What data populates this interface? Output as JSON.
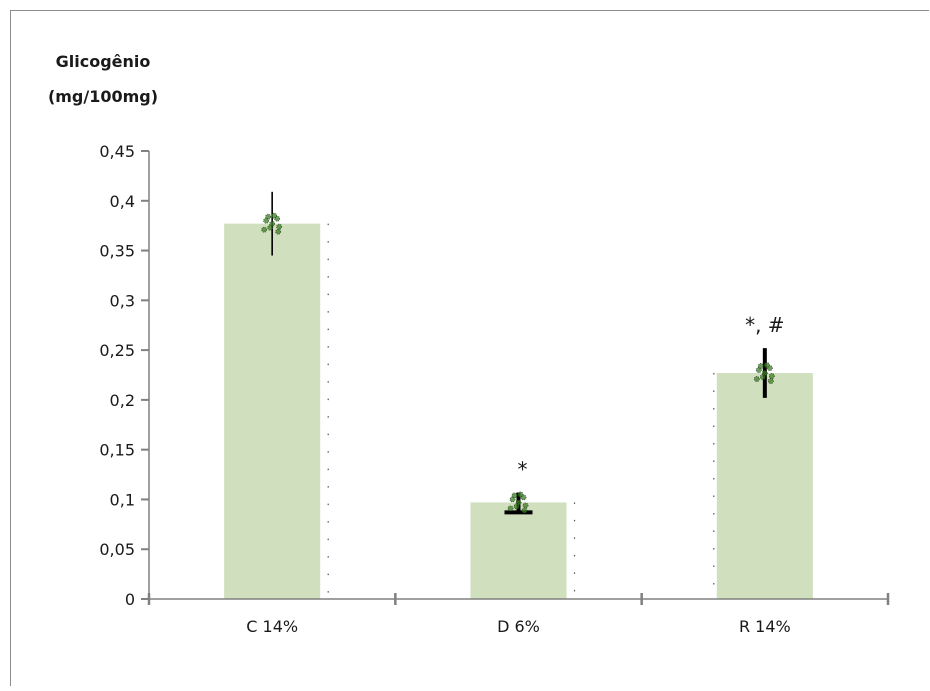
{
  "chart_data": {
    "type": "bar",
    "title": "",
    "ylabel_lines": [
      "Glicogênio",
      "(mg/100mg)"
    ],
    "xlabel": "",
    "categories": [
      "C 14%",
      "D 6%",
      "R 14%"
    ],
    "values": [
      0.377,
      0.097,
      0.227
    ],
    "error": [
      0.032,
      0.01,
      0.025
    ],
    "annotations": [
      "",
      "*",
      "*, #"
    ],
    "ylim": [
      0,
      0.45
    ],
    "yticks": [
      0,
      0.05,
      0.1,
      0.15,
      0.2,
      0.25,
      0.3,
      0.35,
      0.4,
      0.45
    ],
    "ytick_labels": [
      "0",
      "0,05",
      "0,1",
      "0,15",
      "0,2",
      "0,25",
      "0,3",
      "0,35",
      "0,4",
      "0,45"
    ],
    "grid": false,
    "bar_color": "#d0dfbd",
    "point_color": "#3a7d22",
    "axis_color": "#808080",
    "error_color": "#000000"
  }
}
